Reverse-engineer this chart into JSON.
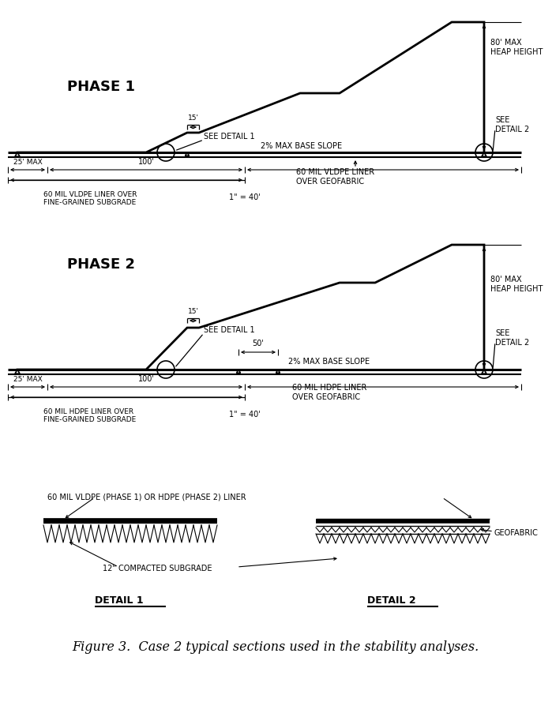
{
  "title": "Figure 3.  Case 2 typical sections used in the stability analyses.",
  "bg_color": "#ffffff",
  "phase1_label": "PHASE 1",
  "phase2_label": "PHASE 2",
  "detail1_label": "DETAIL 1",
  "detail2_label": "DETAIL 2",
  "scale": "1\" = 40'",
  "p1_heap_height": "80' MAX\nHEAP HEIGHT",
  "p1_see_detail2": "SEE\nDETAIL 2",
  "p1_see_detail1": "SEE DETAIL 1",
  "p1_base_slope": "2% MAX BASE SLOPE",
  "p1_liner1": "60 MIL VLDPE LINER OVER\nFINE-GRAINED SUBGRADE",
  "p1_liner2": "60 MIL VLDPE LINER\nOVER GEOFABRIC",
  "p1_dim25": "25' MAX",
  "p1_dim100": "100'",
  "p1_dim15": "15'",
  "p2_heap_height": "80' MAX\nHEAP HEIGHT",
  "p2_see_detail2": "SEE\nDETAIL 2",
  "p2_see_detail1": "SEE DETAIL 1",
  "p2_base_slope": "2% MAX BASE SLOPE",
  "p2_liner1": "60 MIL HDPE LINER OVER\nFINE-GRAINED SUBGRADE",
  "p2_liner2": "60 MIL HDPE LINER\nOVER GEOFABRIC",
  "p2_dim25": "25' MAX",
  "p2_dim100": "100'",
  "p2_dim15": "15'",
  "p2_dim50": "50'",
  "det_liner_label": "60 MIL VLDPE (PHASE 1) OR HDPE (PHASE 2) LINER",
  "det_subgrade_label": "12\" COMPACTED SUBGRADE",
  "det_geofabric_label": "GEOFABRIC"
}
